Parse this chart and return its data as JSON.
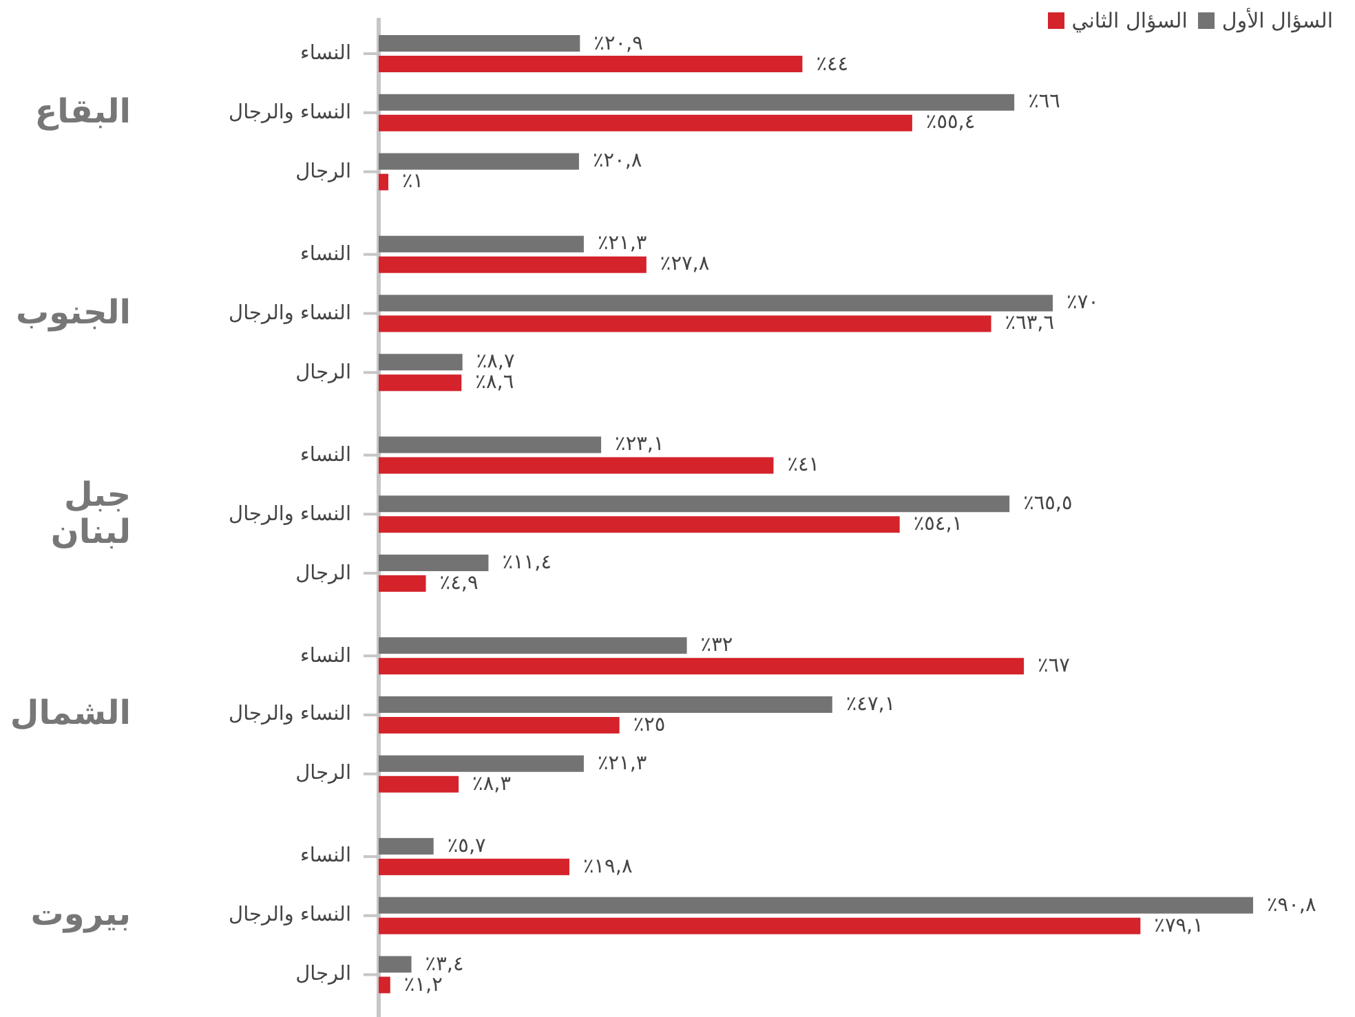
{
  "chart_data": {
    "type": "bar",
    "orientation": "horizontal",
    "categories": [
      "النساء",
      "النساء والرجال",
      "الرجال",
      "النساء",
      "النساء والرجال",
      "الرجال",
      "النساء",
      "النساء والرجال",
      "الرجال",
      "النساء",
      "النساء والرجال",
      "الرجال",
      "النساء",
      "النساء والرجال",
      "الرجال"
    ],
    "annotations": [
      "البقاع",
      "الجنوب",
      "جبل لبنان",
      "الشمال",
      "بيروت"
    ],
    "series": [
      {
        "name": "السؤال الأول",
        "color": "#737373",
        "values": [
          20.9,
          66,
          20.8,
          21.3,
          70,
          8.7,
          23.1,
          65.5,
          11.4,
          32,
          47.1,
          21.3,
          5.7,
          90.8,
          3.4
        ],
        "value_labels": [
          "٢٠,٩٪",
          "٦٦٪",
          "٢٠,٨٪",
          "٢١,٣٪",
          "٧٠٪",
          "٨,٧٪",
          "٢٣,١٪",
          "٦٥,٥٪",
          "١١,٤٪",
          "٣٢٪",
          "٤٧,١٪",
          "٢١,٣٪",
          "٥,٧٪",
          "٩٠,٨٪",
          "٣,٤٪"
        ]
      },
      {
        "name": "السؤال الثاني",
        "color": "#d4232b",
        "values": [
          44,
          55.4,
          1,
          27.8,
          63.6,
          8.6,
          41,
          54.1,
          4.9,
          67,
          25,
          8.3,
          19.8,
          79.1,
          1.2
        ],
        "value_labels": [
          "٤٤٪",
          "٥٥,٤٪",
          "١٪",
          "٢٧,٨٪",
          "٦٣,٦٪",
          "٨,٦٪",
          "٤١٪",
          "٥٤,١٪",
          "٤,٩٪",
          "٦٧٪",
          "٢٥٪",
          "٨,٣٪",
          "١٩,٨٪",
          "٧٩,١٪",
          "١,٢٪"
        ]
      }
    ],
    "tick_labels": "y",
    "legend": "top right"
  }
}
